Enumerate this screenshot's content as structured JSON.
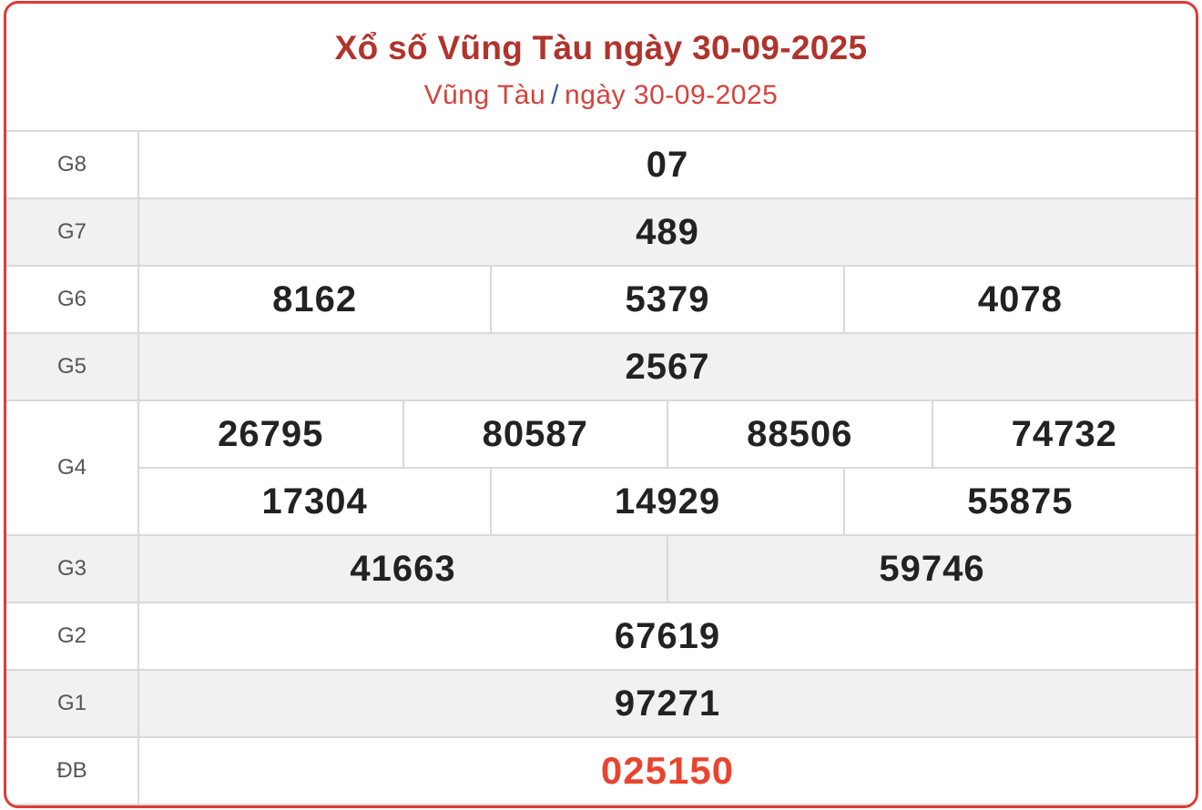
{
  "header": {
    "title": "Xổ số Vũng Tàu ngày 30-09-2025",
    "breadcrumb_province": "Vũng Tàu",
    "breadcrumb_separator": "/",
    "breadcrumb_date": "ngày 30-09-2025"
  },
  "prizes": [
    {
      "label": "G8",
      "rows": [
        [
          "07"
        ]
      ]
    },
    {
      "label": "G7",
      "rows": [
        [
          "489"
        ]
      ]
    },
    {
      "label": "G6",
      "rows": [
        [
          "8162",
          "5379",
          "4078"
        ]
      ]
    },
    {
      "label": "G5",
      "rows": [
        [
          "2567"
        ]
      ]
    },
    {
      "label": "G4",
      "rows": [
        [
          "26795",
          "80587",
          "88506",
          "74732"
        ],
        [
          "17304",
          "14929",
          "55875"
        ]
      ]
    },
    {
      "label": "G3",
      "rows": [
        [
          "41663",
          "59746"
        ]
      ]
    },
    {
      "label": "G2",
      "rows": [
        [
          "67619"
        ]
      ]
    },
    {
      "label": "G1",
      "rows": [
        [
          "97271"
        ]
      ]
    },
    {
      "label": "ĐB",
      "rows": [
        [
          "025150"
        ]
      ],
      "special": true
    }
  ],
  "colors": {
    "border": "#e03a33",
    "title": "#b0342c",
    "special_number": "#e8452f",
    "row_alt": "#f1f1f1"
  }
}
